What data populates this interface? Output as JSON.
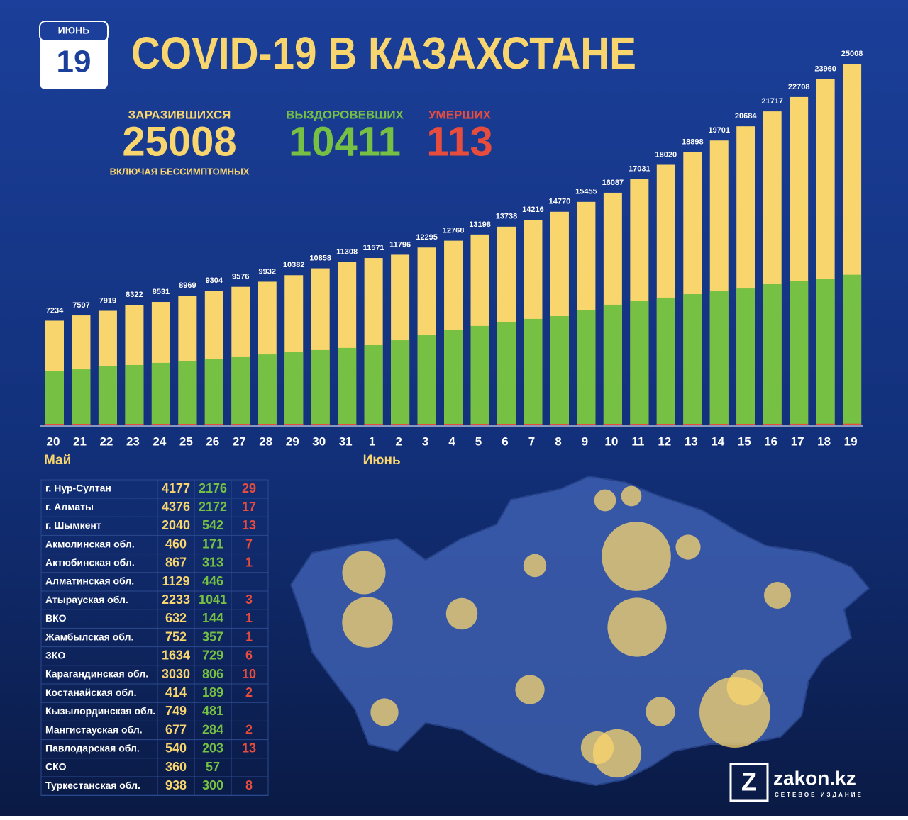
{
  "header": {
    "month": "ИЮНЬ",
    "day": "19",
    "title": "COVID-19 В КАЗАХСТАНЕ"
  },
  "stats": {
    "cases_label": "ЗАРАЗИВШИХСЯ",
    "cases": 25008,
    "cases_note": "ВКЛЮЧАЯ БЕССИМПТОМНЫХ",
    "recovered_label": "ВЫЗДОРОВЕВШИХ",
    "recovered": 10411,
    "deaths_label": "УМЕРШИХ",
    "deaths": 113
  },
  "chart_data": {
    "type": "bar",
    "categories": [
      "20",
      "21",
      "22",
      "23",
      "24",
      "25",
      "26",
      "27",
      "28",
      "29",
      "30",
      "31",
      "1",
      "2",
      "3",
      "4",
      "5",
      "6",
      "7",
      "8",
      "9",
      "10",
      "11",
      "12",
      "13",
      "14",
      "15",
      "16",
      "17",
      "18",
      "19"
    ],
    "months": [
      "Май",
      "Июнь"
    ],
    "series": [
      {
        "color": "#f9d56e",
        "values": [
          7234,
          7597,
          7919,
          8322,
          8531,
          8969,
          9304,
          9576,
          9932,
          10382,
          10858,
          11308,
          11571,
          11796,
          12295,
          12768,
          13198,
          13738,
          14216,
          14770,
          15455,
          16087,
          17031,
          18020,
          18898,
          19701,
          20684,
          21717,
          22708,
          23960,
          25008
        ]
      },
      {
        "color": "#76c043",
        "values": [
          3730,
          3870,
          4070,
          4170,
          4320,
          4460,
          4560,
          4710,
          4900,
          5050,
          5200,
          5350,
          5540,
          5880,
          6230,
          6570,
          6870,
          7110,
          7360,
          7550,
          7990,
          8340,
          8580,
          8830,
          9070,
          9270,
          9460,
          9760,
          10000,
          10150,
          10411
        ]
      },
      {
        "color": "#e84c3d",
        "values": [
          35,
          35,
          35,
          36,
          37,
          37,
          37,
          38,
          39,
          39,
          40,
          41,
          43,
          43,
          44,
          44,
          46,
          48,
          50,
          52,
          56,
          60,
          66,
          72,
          80,
          87,
          93,
          97,
          103,
          108,
          113
        ]
      }
    ]
  },
  "table": {
    "rows": [
      [
        "г. Нур-Султан",
        4177,
        2176,
        29
      ],
      [
        "г. Алматы",
        4376,
        2172,
        17
      ],
      [
        "г. Шымкент",
        2040,
        542,
        13
      ],
      [
        "Акмолинская обл.",
        460,
        171,
        7
      ],
      [
        "Актюбинская обл.",
        867,
        313,
        1
      ],
      [
        "Алматинская обл.",
        1129,
        446,
        null
      ],
      [
        "Атырауская обл.",
        2233,
        1041,
        3
      ],
      [
        "ВКО",
        632,
        144,
        1
      ],
      [
        "Жамбылская обл.",
        752,
        357,
        1
      ],
      [
        "ЗКО",
        1634,
        729,
        6
      ],
      [
        "Карагандинская обл.",
        3030,
        806,
        10
      ],
      [
        "Костанайская обл.",
        414,
        189,
        2
      ],
      [
        "Кызылординская обл.",
        749,
        481,
        null
      ],
      [
        "Мангистауская обл.",
        677,
        284,
        2
      ],
      [
        "Павлодарская обл.",
        540,
        203,
        13
      ],
      [
        "СКО",
        360,
        57,
        null
      ],
      [
        "Туркестанская обл.",
        938,
        300,
        8
      ]
    ]
  },
  "logo": {
    "name": "zakon.kz",
    "tagline": "СЕТЕВОЕ ИЗДАНИЕ"
  }
}
